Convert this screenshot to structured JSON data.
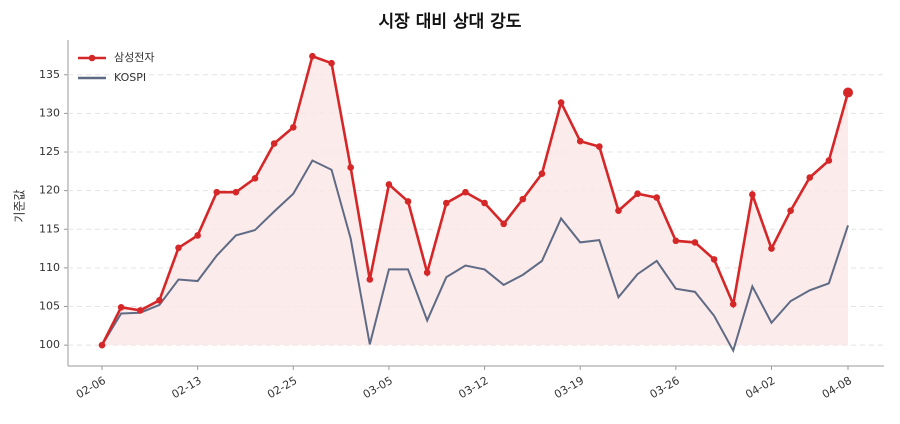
{
  "chart_data": {
    "type": "line",
    "title": "시장 대비 상대 강도",
    "y_label": "기준값",
    "categories": [
      "02-06",
      null,
      null,
      null,
      null,
      "02-13",
      null,
      null,
      null,
      null,
      "02-25",
      null,
      null,
      null,
      null,
      "03-05",
      null,
      null,
      null,
      null,
      "03-12",
      null,
      null,
      null,
      null,
      "03-19",
      null,
      null,
      null,
      null,
      "03-26",
      null,
      null,
      null,
      null,
      "04-02",
      null,
      null,
      null,
      "04-08"
    ],
    "series": [
      {
        "name": "삼성전자",
        "color": "#d62728",
        "fill": "#fbe6e6",
        "markers": true,
        "values": [
          100,
          104.9,
          104.5,
          105.8,
          112.6,
          114.2,
          119.8,
          119.8,
          121.6,
          126.1,
          128.2,
          137.4,
          136.5,
          123,
          108.5,
          120.8,
          118.6,
          109.4,
          118.4,
          119.8,
          118.4,
          115.7,
          118.9,
          122.2,
          131.4,
          126.4,
          125.7,
          117.4,
          119.6,
          119.1,
          113.5,
          113.3,
          111.1,
          105.3,
          119.5,
          112.5,
          117.4,
          121.7,
          123.9,
          132.7
        ]
      },
      {
        "name": "KOSPI",
        "color": "#5f6b85",
        "markers": false,
        "values": [
          100,
          104.1,
          104.2,
          105.2,
          108.5,
          108.3,
          111.6,
          114.2,
          114.9,
          117.3,
          119.6,
          123.9,
          122.7,
          113.8,
          100.1,
          109.8,
          109.8,
          103.2,
          108.8,
          110.3,
          109.8,
          107.8,
          109.1,
          110.9,
          116.4,
          113.3,
          113.6,
          106.2,
          109.2,
          110.9,
          107.3,
          106.9,
          103.8,
          99.3,
          107.6,
          102.9,
          105.7,
          107.1,
          108,
          115.5
        ]
      }
    ],
    "ylim": [
      97.3,
      139.5
    ],
    "yticks": [
      100,
      105,
      110,
      115,
      120,
      125,
      130,
      135
    ],
    "grid": true,
    "legend": "upper-left"
  }
}
